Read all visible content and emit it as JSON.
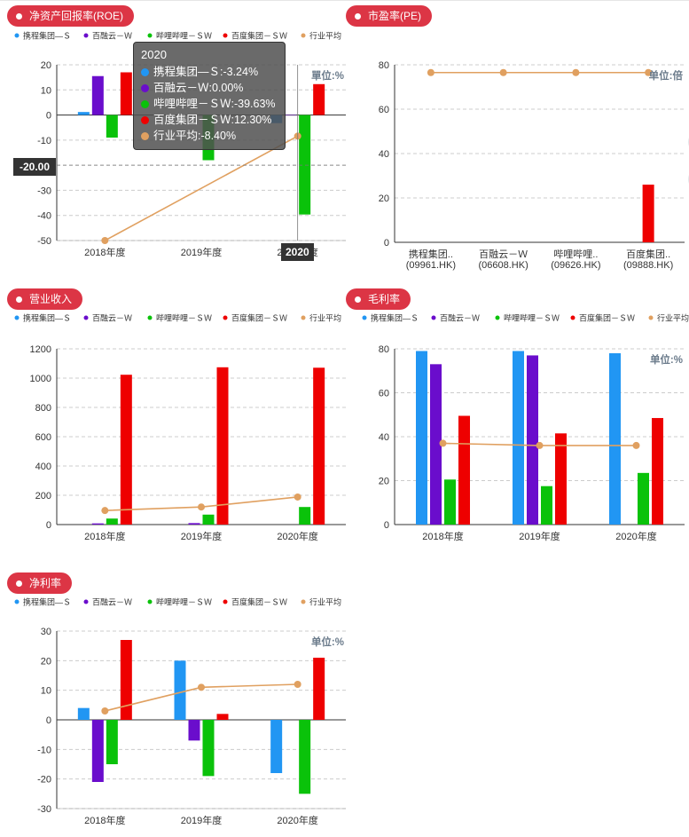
{
  "legend": [
    {
      "name": "携程集团—Ｓ",
      "short": "携程集团—Ｓ",
      "color": "#2196f3"
    },
    {
      "name": "百融云－Ｗ",
      "short": "百融云－Ｗ",
      "color": "#6a0dcc"
    },
    {
      "name": "哔哩哔哩－ＳＷ",
      "short": "哔哩哔哩－ＳＷ",
      "color": "#0ac20a"
    },
    {
      "name": "百度集团－ＳＷ",
      "short": "百度集团－ＳＷ",
      "color": "#ee0000"
    },
    {
      "name": "行业平均",
      "short": "行业平均",
      "color": "#e0a060"
    }
  ],
  "colors": {
    "badge": "#dc3545",
    "avg": "#e0a060",
    "axis": "#333333",
    "grid": "#cccccc"
  },
  "tooltip": {
    "title": "2020",
    "rows": [
      {
        "label": "携程集团—Ｓ:-3.24%",
        "color": "#2196f3"
      },
      {
        "label": "百融云－Ｗ:0.00%",
        "color": "#6a0dcc"
      },
      {
        "label": "哔哩哔哩－ＳＷ:-39.63%",
        "color": "#0ac20a"
      },
      {
        "label": "百度集团－ＳＷ:12.30%",
        "color": "#ee0000"
      },
      {
        "label": "行业平均:-8.40%",
        "color": "#e0a060"
      }
    ],
    "y_marker": "-20.00",
    "x_marker": "2020"
  },
  "chart_data": [
    {
      "id": "roe",
      "type": "bar",
      "title": "净资产回报率(ROE)",
      "unit": "單位:%",
      "categories": [
        "2018年度",
        "2019年度",
        "2020年度"
      ],
      "ylim": [
        -50,
        20
      ],
      "yticks": [
        20,
        10,
        0,
        -10,
        -20,
        -30,
        -40,
        -50
      ],
      "series": [
        {
          "name": "携程集团—Ｓ",
          "values": [
            1.2,
            null,
            -3.24
          ]
        },
        {
          "name": "百融云－Ｗ",
          "values": [
            15.5,
            null,
            0
          ]
        },
        {
          "name": "哔哩哔哩－ＳＷ",
          "values": [
            -9,
            -18,
            -39.63
          ]
        },
        {
          "name": "百度集团－ＳＷ",
          "values": [
            17,
            null,
            12.3
          ]
        }
      ],
      "average": {
        "name": "行业平均",
        "values": [
          -50,
          null,
          -8.4
        ]
      }
    },
    {
      "id": "pe",
      "type": "bar",
      "title": "市盈率(PE)",
      "unit": "单位:倍",
      "categories": [
        "携程集团..|(09961.HK)",
        "百融云－Ｗ|(06608.HK)",
        "哔哩哔哩..|(09626.HK)",
        "百度集团..|(09888.HK)"
      ],
      "ylim": [
        0,
        80
      ],
      "yticks": [
        80,
        60,
        40,
        20,
        0
      ],
      "values": [
        null,
        null,
        null,
        26
      ],
      "average": {
        "name": "行业平均",
        "values": [
          76.5,
          76.5,
          76.5,
          76.5
        ]
      }
    },
    {
      "id": "revenue",
      "type": "bar",
      "title": "营业收入",
      "unit": "",
      "categories": [
        "2018年度",
        "2019年度",
        "2020年度"
      ],
      "ylim": [
        0,
        1200
      ],
      "yticks": [
        1200,
        1000,
        800,
        600,
        400,
        200,
        0
      ],
      "series": [
        {
          "name": "携程集团—Ｓ",
          "values": [
            null,
            null,
            null
          ]
        },
        {
          "name": "百融云－Ｗ",
          "values": [
            8,
            10,
            null
          ]
        },
        {
          "name": "哔哩哔哩－ＳＷ",
          "values": [
            41,
            68,
            120
          ]
        },
        {
          "name": "百度集团－ＳＷ",
          "values": [
            1023,
            1074,
            1071
          ]
        }
      ],
      "average": {
        "name": "行业平均",
        "values": [
          96,
          120,
          188
        ]
      }
    },
    {
      "id": "gross",
      "type": "bar",
      "title": "毛利率",
      "unit": "单位:%",
      "categories": [
        "2018年度",
        "2019年度",
        "2020年度"
      ],
      "ylim": [
        0,
        80
      ],
      "yticks": [
        80,
        60,
        40,
        20,
        0
      ],
      "series": [
        {
          "name": "携程集团—Ｓ",
          "values": [
            79,
            79,
            78
          ]
        },
        {
          "name": "百融云－Ｗ",
          "values": [
            73,
            77,
            null
          ]
        },
        {
          "name": "哔哩哔哩－ＳＷ",
          "values": [
            20.5,
            17.5,
            23.5
          ]
        },
        {
          "name": "百度集团－ＳＷ",
          "values": [
            49.5,
            41.5,
            48.5
          ]
        }
      ],
      "average": {
        "name": "行业平均",
        "values": [
          37,
          36,
          36
        ]
      }
    },
    {
      "id": "netmargin",
      "type": "bar",
      "title": "净利率",
      "unit": "单位:%",
      "categories": [
        "2018年度",
        "2019年度",
        "2020年度"
      ],
      "ylim": [
        -30,
        30
      ],
      "yticks": [
        30,
        20,
        10,
        0,
        -10,
        -20,
        -30
      ],
      "series": [
        {
          "name": "携程集团—Ｓ",
          "values": [
            4,
            20,
            -18
          ]
        },
        {
          "name": "百融云－Ｗ",
          "values": [
            -21,
            -7,
            null
          ]
        },
        {
          "name": "哔哩哔哩－ＳＷ",
          "values": [
            -15,
            -19,
            -25
          ]
        },
        {
          "name": "百度集团－ＳＷ",
          "values": [
            27,
            2,
            21
          ]
        }
      ],
      "average": {
        "name": "行业平均",
        "values": [
          3,
          11,
          12
        ]
      }
    }
  ]
}
